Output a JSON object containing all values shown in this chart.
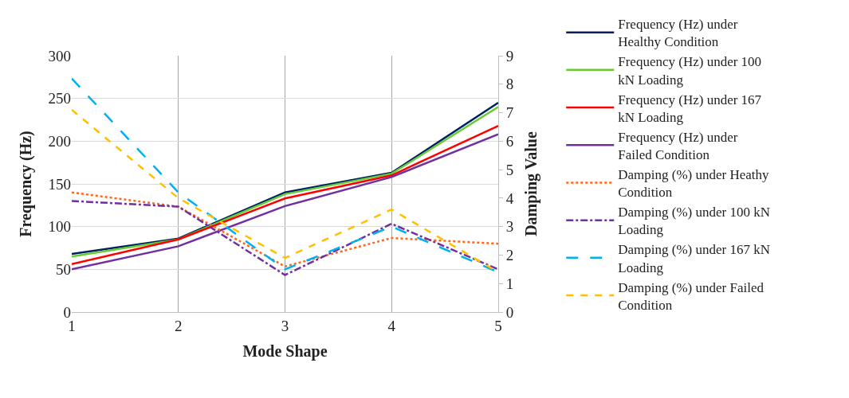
{
  "chart_data": {
    "type": "line",
    "xlabel": "Mode Shape",
    "ylabel": "Frequency (Hz)",
    "y2label": "Damping Value",
    "x": [
      1,
      2,
      3,
      4,
      5
    ],
    "xlim": [
      1,
      5
    ],
    "xticks": [
      1,
      2,
      3,
      4,
      5
    ],
    "ylim": [
      0,
      300
    ],
    "yticks": [
      0,
      50,
      100,
      150,
      200,
      250,
      300
    ],
    "y2lim": [
      0,
      9
    ],
    "y2ticks": [
      0,
      1,
      2,
      3,
      4,
      5,
      6,
      7,
      8,
      9
    ],
    "grid": true,
    "legend": "right",
    "marker": "none",
    "series": [
      {
        "name": "Frequency (Hz) under Healthy Condition",
        "color": "#002060",
        "line_style": "solid",
        "values": [
          68,
          86,
          140,
          163,
          245
        ]
      },
      {
        "name": "Frequency (Hz) under 100 kN Loading",
        "color": "#66cc33",
        "line_style": "solid",
        "values": [
          65,
          85,
          138,
          162,
          240
        ]
      },
      {
        "name": "Frequency (Hz) under 167 kN Loading",
        "color": "#ff0000",
        "line_style": "solid",
        "values": [
          56,
          85,
          133,
          160,
          218
        ]
      },
      {
        "name": "Frequency (Hz) under Failed Condition",
        "color": "#7030a0",
        "line_style": "solid",
        "values": [
          50,
          77,
          124,
          158,
          208
        ]
      },
      {
        "name": "Damping (%) under Heathy Condition",
        "color": "#ff6619",
        "line_style": "dotted",
        "axis": "y2",
        "values": [
          4.2,
          3.7,
          1.6,
          2.6,
          2.4
        ]
      },
      {
        "name": "Damping (%) under 100 kN Loading",
        "color": "#7030a0",
        "line_style": "dash_dot",
        "axis": "y2",
        "values": [
          3.9,
          3.7,
          1.3,
          3.1,
          1.5
        ]
      },
      {
        "name": "Damping (%) under 167 kN Loading",
        "color": "#00b0f0",
        "line_style": "long_dashed",
        "axis": "y2",
        "values": [
          8.2,
          4.2,
          1.5,
          3.0,
          1.4
        ]
      },
      {
        "name": "Damping (%) under Failed Condition",
        "color": "#ffc000",
        "line_style": "dashed",
        "axis": "y2",
        "values": [
          7.1,
          4.0,
          1.9,
          3.6,
          1.4
        ]
      }
    ]
  }
}
